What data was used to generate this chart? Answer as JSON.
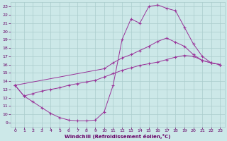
{
  "bg_color": "#cce8e8",
  "line_color": "#993399",
  "grid_color": "#aacccc",
  "xlabel": "Windchill (Refroidissement éolien,°C)",
  "xlabel_color": "#660066",
  "tick_color": "#660066",
  "xlim": [
    -0.5,
    23.5
  ],
  "ylim": [
    8.5,
    23.5
  ],
  "xticks": [
    0,
    1,
    2,
    3,
    4,
    5,
    6,
    7,
    8,
    9,
    10,
    11,
    12,
    13,
    14,
    15,
    16,
    17,
    18,
    19,
    20,
    21,
    22,
    23
  ],
  "yticks": [
    9,
    10,
    11,
    12,
    13,
    14,
    15,
    16,
    17,
    18,
    19,
    20,
    21,
    22,
    23
  ],
  "curve1_x": [
    0,
    1,
    2,
    3,
    4,
    5,
    6,
    7,
    8,
    9,
    10,
    11,
    12,
    13,
    14,
    15,
    16,
    17,
    18,
    19,
    20,
    21,
    22,
    23
  ],
  "curve1_y": [
    13.5,
    12.2,
    11.5,
    10.8,
    10.1,
    9.6,
    9.3,
    9.2,
    9.2,
    9.3,
    10.3,
    13.5,
    19.0,
    21.5,
    21.0,
    23.0,
    23.2,
    22.8,
    22.5,
    20.5,
    18.5,
    17.0,
    16.2,
    16.0
  ],
  "curve2_x": [
    0,
    10,
    11,
    12,
    13,
    14,
    15,
    16,
    17,
    18,
    19,
    20,
    21,
    22,
    23
  ],
  "curve2_y": [
    13.5,
    15.5,
    16.2,
    16.8,
    17.2,
    17.7,
    18.2,
    18.8,
    19.2,
    18.7,
    18.2,
    17.2,
    16.5,
    16.2,
    16.0
  ],
  "curve3_x": [
    0,
    1,
    2,
    3,
    4,
    5,
    6,
    7,
    8,
    9,
    10,
    11,
    12,
    13,
    14,
    15,
    16,
    17,
    18,
    19,
    20,
    21,
    22,
    23
  ],
  "curve3_y": [
    13.5,
    12.2,
    12.5,
    12.8,
    13.0,
    13.2,
    13.5,
    13.7,
    13.9,
    14.1,
    14.5,
    14.9,
    15.3,
    15.6,
    15.9,
    16.1,
    16.3,
    16.6,
    16.9,
    17.1,
    17.0,
    16.5,
    16.2,
    16.0
  ]
}
